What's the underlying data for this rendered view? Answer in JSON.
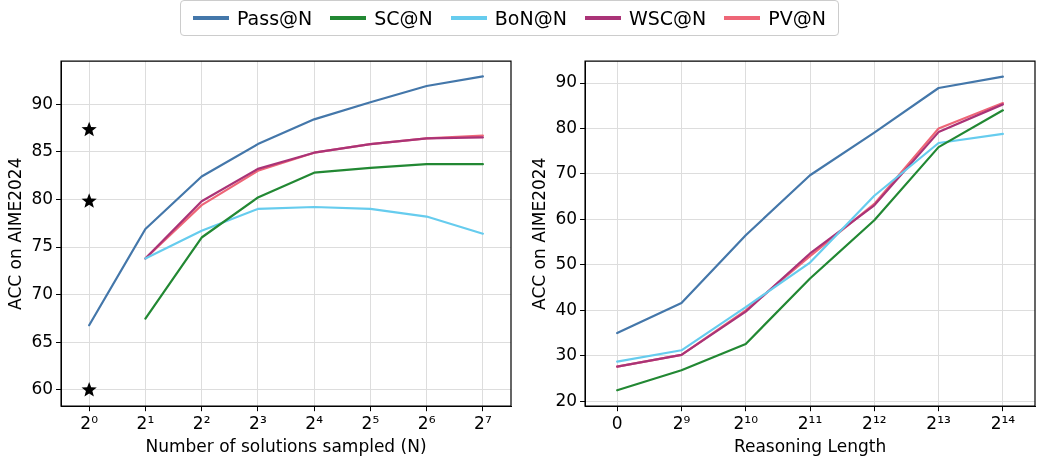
{
  "chart_data": [
    {
      "type": "line",
      "xlabel": "Number of solutions sampled (N)",
      "ylabel": "ACC on AIME2024",
      "categories": [
        "2⁰",
        "2¹",
        "2²",
        "2³",
        "2⁴",
        "2⁵",
        "2⁶",
        "2⁷"
      ],
      "ylim": [
        58.3,
        94.5
      ],
      "yticks": [
        60,
        65,
        70,
        75,
        80,
        85,
        90
      ],
      "grid": true,
      "legend": "top",
      "marker": "none",
      "line_style": "solid",
      "series": [
        {
          "name": "Pass@N",
          "color": "#4477aa",
          "values": [
            66.8,
            76.9,
            82.4,
            85.8,
            88.4,
            90.2,
            91.9,
            92.9
          ]
        },
        {
          "name": "SC@N",
          "color": "#228833",
          "values": [
            null,
            67.5,
            76.0,
            80.2,
            82.8,
            83.3,
            83.7,
            83.7
          ]
        },
        {
          "name": "BoN@N",
          "color": "#66ccee",
          "values": [
            null,
            73.8,
            76.7,
            79.0,
            79.2,
            79.0,
            78.2,
            76.4
          ]
        },
        {
          "name": "WSC@N",
          "color": "#aa3377",
          "values": [
            null,
            73.8,
            79.8,
            83.2,
            84.9,
            85.8,
            86.4,
            86.5
          ]
        },
        {
          "name": "PV@N",
          "color": "#ee6677",
          "values": [
            null,
            73.8,
            79.4,
            83.0,
            84.9,
            85.8,
            86.4,
            86.7
          ]
        },
        {
          "type": "scatter",
          "marker": "star",
          "color": "#000000",
          "x": [
            "2⁰",
            "2⁰",
            "2⁰"
          ],
          "values": [
            87.3,
            79.8,
            60.0
          ]
        }
      ]
    },
    {
      "type": "line",
      "xlabel": "Reasoning Length",
      "ylabel": "ACC on AIME2024",
      "categories": [
        "0",
        "2⁹",
        "2¹⁰",
        "2¹¹",
        "2¹²",
        "2¹³",
        "2¹⁴"
      ],
      "ylim": [
        18.9,
        94.8
      ],
      "yticks": [
        20,
        30,
        40,
        50,
        60,
        70,
        80,
        90
      ],
      "grid": true,
      "legend": "top",
      "marker": "none",
      "line_style": "solid",
      "series": [
        {
          "name": "Pass@N",
          "color": "#4477aa",
          "values": [
            35.0,
            41.6,
            56.5,
            69.7,
            79.1,
            88.9,
            91.4
          ]
        },
        {
          "name": "SC@N",
          "color": "#228833",
          "values": [
            22.4,
            26.8,
            32.6,
            47.0,
            59.8,
            75.9,
            84.0
          ]
        },
        {
          "name": "BoN@N",
          "color": "#66ccee",
          "values": [
            28.7,
            31.2,
            40.7,
            50.5,
            65.2,
            76.8,
            78.8
          ]
        },
        {
          "name": "WSC@N",
          "color": "#aa3377",
          "values": [
            27.6,
            30.2,
            39.7,
            52.5,
            63.1,
            79.2,
            85.3
          ]
        },
        {
          "name": "PV@N",
          "color": "#ee6677",
          "values": [
            27.6,
            30.2,
            40.0,
            51.9,
            63.4,
            80.0,
            85.6
          ]
        }
      ]
    }
  ]
}
